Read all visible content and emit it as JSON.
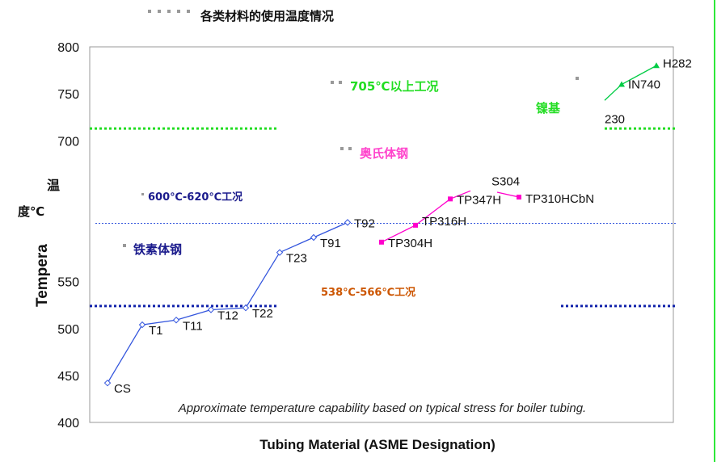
{
  "chart_data": {
    "type": "line",
    "ylim": [
      400,
      800
    ],
    "y_ticks": [
      400,
      450,
      500,
      550,
      700,
      750,
      800
    ],
    "ylabel": "Tempera",
    "xlabel": "Tubing Material (ASME Designation)",
    "note": "Approximate temperature capability based on typical stress for boiler tubing.",
    "series": [
      {
        "color": "#3355dd",
        "marker": "diamond-open",
        "points": [
          {
            "label": "CS",
            "y": 442
          },
          {
            "label": "T1",
            "y": 504
          },
          {
            "label": "T11",
            "y": 509
          },
          {
            "label": "T12",
            "y": 520
          },
          {
            "label": "T22",
            "y": 522
          },
          {
            "label": "T23",
            "y": 581
          },
          {
            "label": "T91",
            "y": 597
          },
          {
            "label": "T92",
            "y": 613
          }
        ]
      },
      {
        "color": "#ff00cc",
        "marker": "square",
        "points": [
          {
            "label": "TP304H",
            "y": 592
          },
          {
            "label": "TP316H",
            "y": 610
          },
          {
            "label": "TP347H",
            "y": 638
          },
          {
            "label": "S304",
            "y": 642
          },
          {
            "label": "TP310HCbN",
            "y": 640
          }
        ]
      },
      {
        "color": "#00cc44",
        "marker": "triangle",
        "points": [
          {
            "label": "230",
            "y": 743
          },
          {
            "label": "IN740",
            "y": 760
          },
          {
            "label": "H282",
            "y": 780
          }
        ]
      }
    ],
    "reference_lines": [
      {
        "y": 713,
        "color": "#22dd22",
        "style": "dotted"
      },
      {
        "y": 612,
        "color": "#3355dd",
        "style": "dotted"
      },
      {
        "y": 524,
        "color": "#1122aa",
        "style": "dotted"
      }
    ]
  },
  "annotations": {
    "title": "各类材料的使用温度情况",
    "ni_range": "705℃以上工况",
    "ni_base": "镍基",
    "austenitic": "奥氏体钢",
    "mid_range": "600℃-620℃工况",
    "ferritic": "铁素体钢",
    "low_range": "538℃-566℃工况",
    "wen": "温",
    "du": "度℃"
  },
  "colors": {
    "ni": "#22dd22",
    "austenitic": "#ff44cc",
    "mid": "#1a1a8c",
    "low": "#cc5500"
  }
}
